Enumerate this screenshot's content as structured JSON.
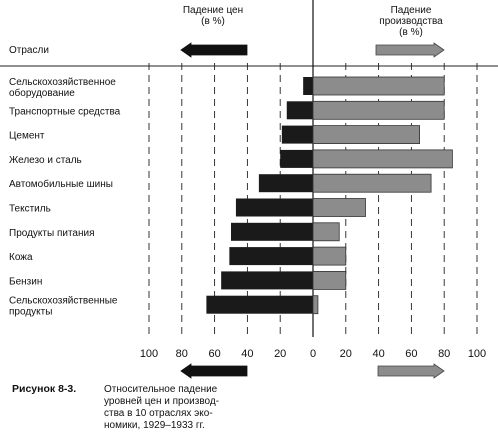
{
  "chart_data": {
    "type": "bar",
    "orientation": "horizontal-back-to-back",
    "industries_label": "Отрасли",
    "left_header": [
      "Падение цен",
      "(в %)"
    ],
    "right_header": [
      "Падение",
      "производства",
      "(в %)"
    ],
    "categories": [
      [
        "Сельскохозяйственное",
        "оборудование"
      ],
      [
        "Транспортные средства"
      ],
      [
        "Цемент"
      ],
      [
        "Железо и сталь"
      ],
      [
        "Автомобильные шины"
      ],
      [
        "Текстиль"
      ],
      [
        "Продукты питания"
      ],
      [
        "Кожа"
      ],
      [
        "Бензин"
      ],
      [
        "Сельскохозяйственные",
        "продукты"
      ]
    ],
    "series": [
      {
        "name": "Падение цен",
        "values": [
          6,
          16,
          19,
          20,
          33,
          47,
          50,
          51,
          56,
          65
        ],
        "color": "#1a1a1a"
      },
      {
        "name": "Падение производства",
        "values": [
          80,
          80,
          65,
          85,
          72,
          32,
          16,
          20,
          20,
          3
        ],
        "color": "#8c8c8c"
      }
    ],
    "x_ticks_left": [
      "100",
      "80",
      "60",
      "40",
      "20",
      "0"
    ],
    "x_ticks_right": [
      "20",
      "40",
      "60",
      "80",
      "100"
    ],
    "xlim_left": [
      0,
      100
    ],
    "xlim_right": [
      0,
      100
    ],
    "grid": true
  },
  "caption": {
    "figure_label": "Рисунок 8-3.",
    "lines": [
      "Относительное падение",
      "уровней цен и производ-",
      "ства в 10 отраслях эко-",
      "номики, 1929–1933 гг."
    ]
  }
}
